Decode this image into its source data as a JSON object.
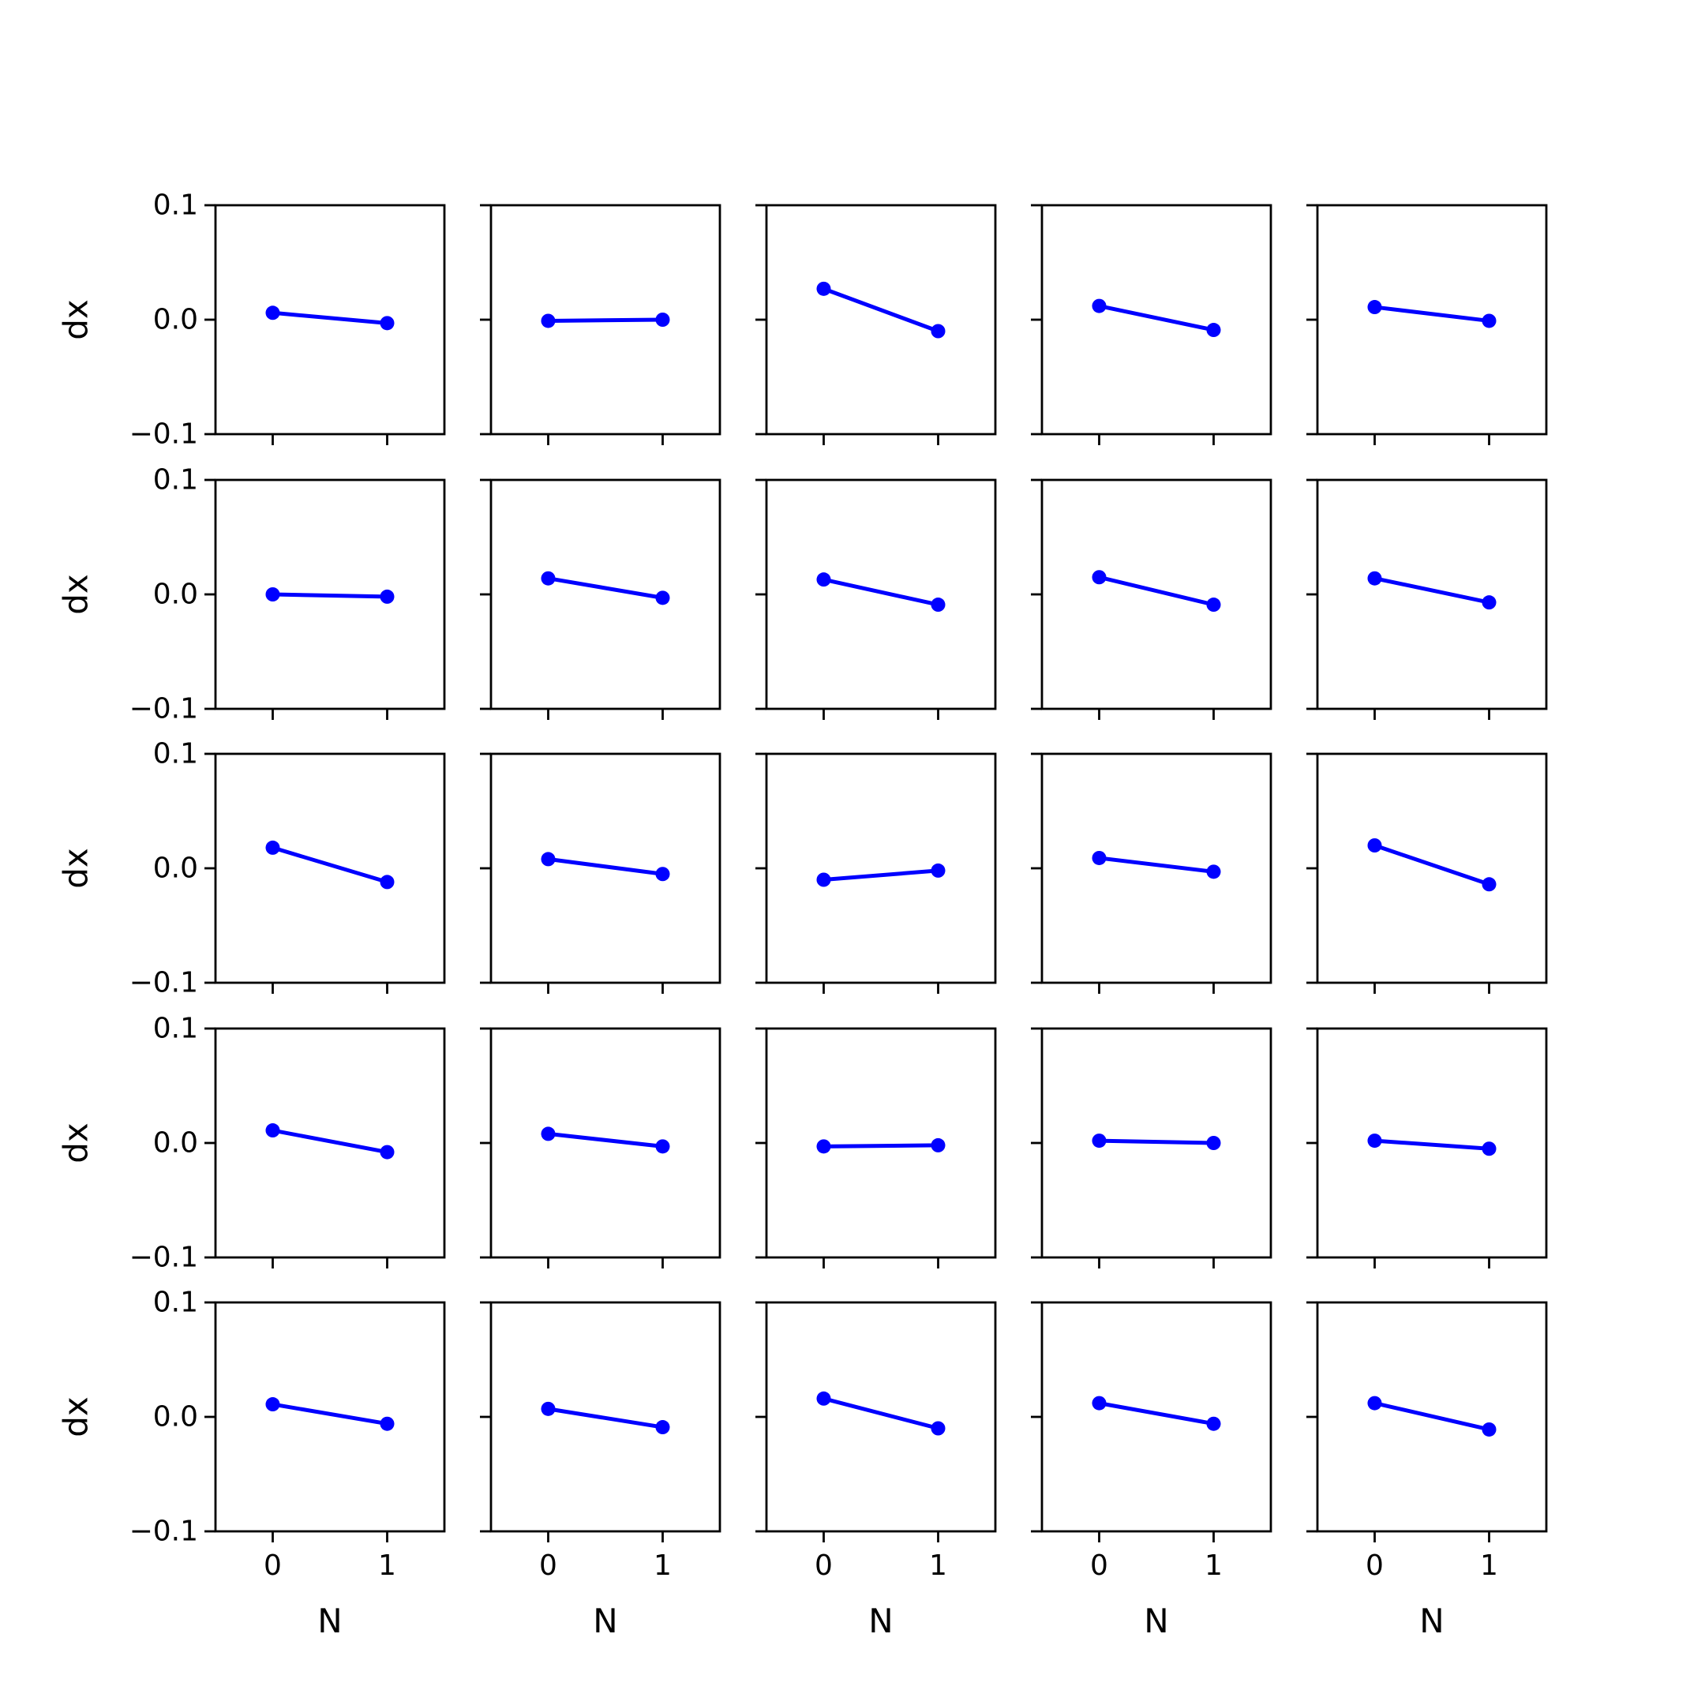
{
  "chart_data": {
    "type": "line",
    "layout": {
      "rows": 5,
      "cols": 5,
      "sharex": true,
      "sharey": true
    },
    "xlabel": "N",
    "ylabel": "dx",
    "xticks": [
      0,
      1
    ],
    "xtick_labels": [
      "0",
      "1"
    ],
    "yticks": [
      0.1,
      0.0,
      -0.1
    ],
    "ytick_labels": [
      "0.1",
      "0.0",
      "−0.1"
    ],
    "xlim": [
      -0.5,
      1.5
    ],
    "ylim": [
      -0.1,
      0.1
    ],
    "grid": false,
    "series_color": "#0000ff",
    "x": [
      0,
      1
    ],
    "subplots": [
      {
        "y": [
          0.006,
          -0.003
        ]
      },
      {
        "y": [
          -0.001,
          0.0
        ]
      },
      {
        "y": [
          0.027,
          -0.01
        ]
      },
      {
        "y": [
          0.012,
          -0.009
        ]
      },
      {
        "y": [
          0.011,
          -0.001
        ]
      },
      {
        "y": [
          0.0,
          -0.002
        ]
      },
      {
        "y": [
          0.014,
          -0.003
        ]
      },
      {
        "y": [
          0.013,
          -0.009
        ]
      },
      {
        "y": [
          0.015,
          -0.009
        ]
      },
      {
        "y": [
          0.014,
          -0.007
        ]
      },
      {
        "y": [
          0.018,
          -0.012
        ]
      },
      {
        "y": [
          0.008,
          -0.005
        ]
      },
      {
        "y": [
          -0.01,
          -0.002
        ]
      },
      {
        "y": [
          0.009,
          -0.003
        ]
      },
      {
        "y": [
          0.02,
          -0.014
        ]
      },
      {
        "y": [
          0.011,
          -0.008
        ]
      },
      {
        "y": [
          0.008,
          -0.003
        ]
      },
      {
        "y": [
          -0.003,
          -0.002
        ]
      },
      {
        "y": [
          0.002,
          0.0
        ]
      },
      {
        "y": [
          0.002,
          -0.005
        ]
      },
      {
        "y": [
          0.011,
          -0.006
        ]
      },
      {
        "y": [
          0.007,
          -0.009
        ]
      },
      {
        "y": [
          0.016,
          -0.01
        ]
      },
      {
        "y": [
          0.012,
          -0.006
        ]
      },
      {
        "y": [
          0.012,
          -0.011
        ]
      }
    ]
  }
}
